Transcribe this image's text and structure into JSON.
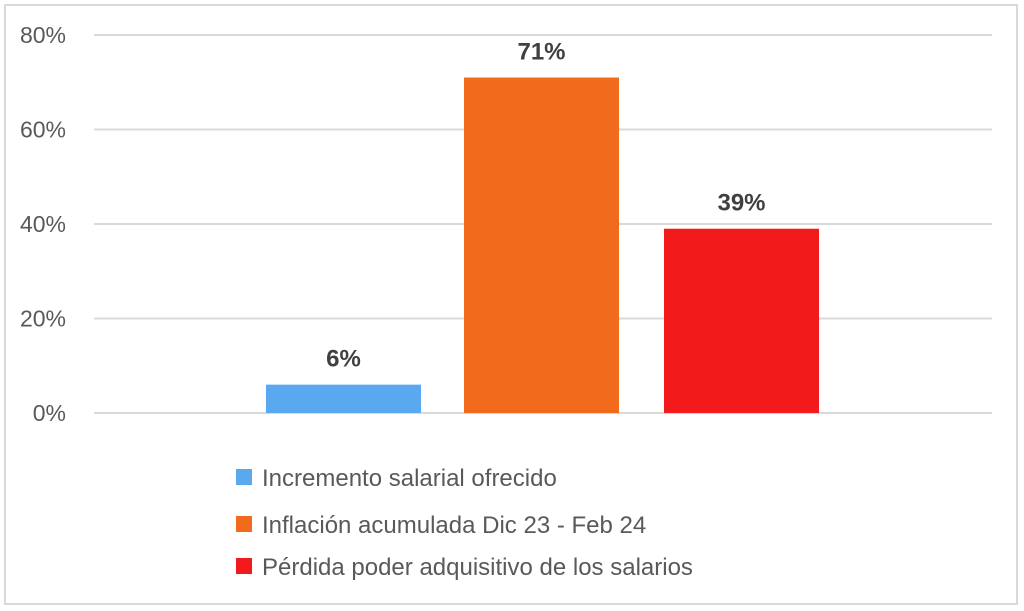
{
  "chart_data": {
    "type": "bar",
    "categories": [
      "Incremento salarial ofrecido",
      "Inflación acumulada Dic 23 - Feb 24",
      "Pérdida poder adquisitivo de los salarios"
    ],
    "values": [
      6,
      71,
      39
    ],
    "data_labels": [
      "6%",
      "71%",
      "39%"
    ],
    "colors": [
      "#5aa9f0",
      "#f26a1b",
      "#f21a1a"
    ],
    "y_ticks": [
      0,
      20,
      40,
      60,
      80
    ],
    "y_tick_labels": [
      "0%",
      "20%",
      "40%",
      "60%",
      "80%"
    ],
    "ylim": [
      0,
      80
    ],
    "grid": true,
    "legend_position": "bottom"
  }
}
